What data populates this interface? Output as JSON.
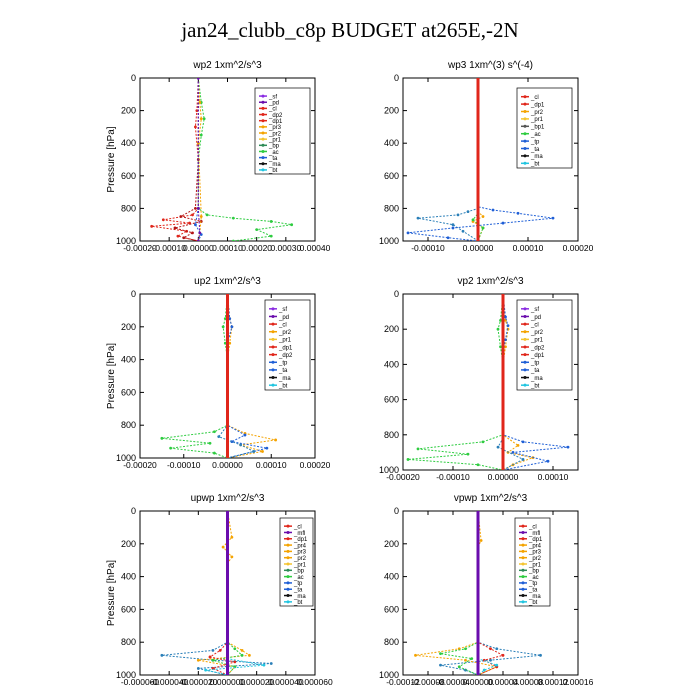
{
  "page": {
    "title": "jan24_clubb_c8p  BUDGET at265E,-2N"
  },
  "colors": {
    "sf": "#8a2be2",
    "pd": "#6a0dad",
    "mfl": "#6a0dad",
    "cl": "#e0261b",
    "dp1": "#e0261b",
    "dp2": "#e0261b",
    "pr1": "#f4c430",
    "pr2": "#f4a300",
    "pr3": "#f4a300",
    "pr4": "#f4a300",
    "bp": "#2e8b57",
    "ac": "#2ecc40",
    "tp": "#1f5fd6",
    "ta": "#1f5fd6",
    "ma": "#111111",
    "bt": "#22c5e0"
  },
  "chart_data": [
    {
      "type": "line",
      "title": "wp2   1xm^2/s^3",
      "ylabel": "Pressure  [hPa]",
      "xlim": [
        -0.0002,
        0.0004
      ],
      "ylim": [
        1000,
        0
      ],
      "xticks": [
        "-0.00020",
        "-0.00010",
        "0.00000",
        "0.00010",
        "0.00020",
        "0.00030",
        "0.00040"
      ],
      "xtick_values": [
        -0.0002,
        -0.0001,
        0.0,
        0.0001,
        0.0002,
        0.0003,
        0.0004
      ],
      "yticks": [
        0,
        200,
        400,
        600,
        800,
        1000
      ],
      "legend": [
        "_sf",
        "_pd",
        "_cl",
        "_dp2",
        "_dp1",
        "_pr3",
        "_pr2",
        "_pr1",
        "_bp",
        "_ac",
        "_ta",
        "_ma",
        "_bt"
      ],
      "series": [
        {
          "name": "_ac",
          "color": "#2ecc40",
          "x": [
            0,
            1e-05,
            2e-05,
            1e-05,
            0,
            0,
            3e-05,
            0.00012,
            0.00025,
            0.00032,
            0.0002,
            0.00025,
            0.00012
          ],
          "y": [
            0,
            150,
            250,
            350,
            500,
            800,
            840,
            860,
            880,
            900,
            930,
            970,
            1000
          ]
        },
        {
          "name": "_dp1",
          "color": "#e0261b",
          "x": [
            0,
            -5e-06,
            -1e-05,
            0,
            0,
            -2e-05,
            -0.00012,
            -3e-05,
            -0.00016,
            -4e-05,
            -7e-05,
            0
          ],
          "y": [
            0,
            200,
            300,
            500,
            800,
            840,
            870,
            890,
            910,
            940,
            970,
            1000
          ]
        },
        {
          "name": "_dp2",
          "color": "#b31313",
          "x": [
            0,
            0,
            -1e-05,
            -6e-05,
            1e-05,
            -8e-05,
            -2e-05,
            -5e-05,
            0
          ],
          "y": [
            0,
            500,
            800,
            850,
            880,
            920,
            950,
            980,
            1000
          ]
        },
        {
          "name": "_pr2",
          "color": "#f4a300",
          "x": [
            0,
            5e-06,
            1e-05,
            0,
            1e-05,
            5e-06,
            0
          ],
          "y": [
            0,
            150,
            250,
            400,
            850,
            950,
            1000
          ]
        },
        {
          "name": "_tp",
          "color": "#1f5fd6",
          "x": [
            0,
            0,
            -1e-05,
            1e-05,
            0
          ],
          "y": [
            0,
            800,
            900,
            960,
            1000
          ]
        },
        {
          "name": "_sf",
          "color": "#6a0dad",
          "x": [
            0,
            0,
            5e-06,
            0
          ],
          "y": [
            0,
            800,
            950,
            1000
          ]
        }
      ]
    },
    {
      "type": "line",
      "title": "wp3   1xm^(3) s^(-4)",
      "ylabel": "",
      "xlim": [
        -0.00015,
        0.0002
      ],
      "ylim": [
        1000,
        0
      ],
      "xticks": [
        "-0.00010",
        "0.00000",
        "0.00010",
        "0.00020"
      ],
      "xtick_values": [
        -0.0001,
        0.0,
        0.0001,
        0.0002
      ],
      "yticks": [
        0,
        200,
        400,
        600,
        800,
        1000
      ],
      "legend": [
        "_cl",
        "_dp1",
        "_pr2",
        "_pr1",
        "_bp1",
        "_ac",
        "_tp",
        "_ta",
        "_ma",
        "_bt"
      ],
      "series": [
        {
          "name": "_ta",
          "color": "#2a7fb8",
          "x": [
            0,
            0,
            -2e-05,
            -4e-05,
            -0.00012,
            -5e-05,
            -3e-05,
            0
          ],
          "y": [
            0,
            800,
            820,
            840,
            860,
            900,
            940,
            1000
          ]
        },
        {
          "name": "_tp",
          "color": "#1f5fd6",
          "x": [
            0,
            0,
            3e-05,
            8e-05,
            0.00015,
            5e-05,
            -5e-05,
            -0.00014,
            -6e-05,
            0
          ],
          "y": [
            0,
            790,
            810,
            830,
            860,
            890,
            920,
            950,
            980,
            1000
          ]
        },
        {
          "name": "_pr2",
          "color": "#f4a300",
          "x": [
            0,
            0,
            1e-05,
            -1e-05,
            1e-05,
            0
          ],
          "y": [
            0,
            820,
            850,
            880,
            920,
            1000
          ]
        },
        {
          "name": "_ac",
          "color": "#2ecc40",
          "x": [
            0,
            0,
            -1e-05,
            1e-05,
            0
          ],
          "y": [
            0,
            830,
            870,
            920,
            1000
          ]
        },
        {
          "name": "_cl",
          "color": "#e0261b",
          "x": [
            0,
            0,
            0
          ],
          "y": [
            0,
            500,
            1000
          ]
        }
      ]
    },
    {
      "type": "line",
      "title": "up2   1xm^2/s^3",
      "ylabel": "Pressure  [hPa]",
      "xlim": [
        -0.0002,
        0.0002
      ],
      "ylim": [
        1000,
        0
      ],
      "xticks": [
        "-0.00020",
        "-0.00010",
        "0.00000",
        "0.00010",
        "0.00020"
      ],
      "xtick_values": [
        -0.0002,
        -0.0001,
        0.0,
        0.0001,
        0.0002
      ],
      "yticks": [
        0,
        200,
        400,
        600,
        800,
        1000
      ],
      "legend": [
        "_sf",
        "_pd",
        "_cl",
        "_pr2",
        "_pr1",
        "_dp1",
        "_dp2",
        "_tp",
        "_ta",
        "_ma",
        "_bt"
      ],
      "series": [
        {
          "name": "_dp1",
          "color": "#2ecc40",
          "x": [
            0,
            -5e-06,
            -1e-05,
            -5e-06,
            0,
            0,
            -3e-05,
            -0.00015,
            -4e-05,
            -0.00013,
            -3e-05,
            0
          ],
          "y": [
            0,
            150,
            200,
            300,
            400,
            800,
            840,
            880,
            910,
            940,
            970,
            1000
          ]
        },
        {
          "name": "_pr2",
          "color": "#f4a300",
          "x": [
            0,
            5e-06,
            1e-05,
            5e-06,
            0,
            0,
            4e-05,
            0.00011,
            3e-05,
            8e-05,
            0
          ],
          "y": [
            0,
            150,
            200,
            300,
            400,
            800,
            850,
            890,
            920,
            960,
            1000
          ]
        },
        {
          "name": "_tp",
          "color": "#1f5fd6",
          "x": [
            0,
            5e-06,
            1e-05,
            0,
            0,
            4e-05,
            1e-05,
            9e-05,
            0
          ],
          "y": [
            0,
            150,
            200,
            300,
            800,
            860,
            900,
            940,
            1000
          ]
        },
        {
          "name": "_ta",
          "color": "#2a7fb8",
          "x": [
            0,
            0,
            -2e-05,
            3e-05,
            6e-05,
            0
          ],
          "y": [
            0,
            800,
            870,
            920,
            960,
            1000
          ]
        },
        {
          "name": "_cl",
          "color": "#e0261b",
          "x": [
            0,
            0,
            0
          ],
          "y": [
            0,
            500,
            1000
          ]
        }
      ]
    },
    {
      "type": "line",
      "title": "vp2   1xm^2/s^3",
      "ylabel": "",
      "xlim": [
        -0.0002,
        0.00015
      ],
      "ylim": [
        1000,
        0
      ],
      "xticks": [
        "-0.00020",
        "-0.00010",
        "0.00000",
        "0.00010"
      ],
      "xtick_values": [
        -0.0002,
        -0.0001,
        0.0,
        0.0001
      ],
      "yticks": [
        0,
        200,
        400,
        600,
        800,
        1000
      ],
      "legend": [
        "_sf",
        "_pd",
        "_cl",
        "_pr2",
        "_pr1",
        "_dp2",
        "_dp1",
        "_tp",
        "_ta",
        "_ma",
        "_bt"
      ],
      "series": [
        {
          "name": "_dp1",
          "color": "#2ecc40",
          "x": [
            0,
            -5e-06,
            -1e-05,
            -5e-06,
            0,
            0,
            -4e-05,
            -0.00017,
            -7e-05,
            -0.00019,
            -5e-05,
            0
          ],
          "y": [
            0,
            150,
            200,
            300,
            400,
            800,
            840,
            880,
            910,
            940,
            970,
            1000
          ]
        },
        {
          "name": "_pr2",
          "color": "#f4a300",
          "x": [
            0,
            5e-06,
            1e-05,
            5e-06,
            0,
            0,
            3e-05,
            1e-05,
            6e-05,
            2e-05,
            0
          ],
          "y": [
            0,
            150,
            200,
            300,
            400,
            800,
            860,
            900,
            930,
            970,
            1000
          ]
        },
        {
          "name": "_tp",
          "color": "#1f5fd6",
          "x": [
            0,
            5e-06,
            1e-05,
            5e-06,
            0,
            0,
            4e-05,
            0.00013,
            2e-05,
            9e-05,
            0
          ],
          "y": [
            0,
            130,
            180,
            260,
            330,
            800,
            840,
            870,
            900,
            950,
            1000
          ]
        },
        {
          "name": "_ta",
          "color": "#2a7fb8",
          "x": [
            0,
            0,
            -1e-05,
            4e-05,
            0
          ],
          "y": [
            0,
            820,
            870,
            940,
            1000
          ]
        },
        {
          "name": "_cl",
          "color": "#e0261b",
          "x": [
            0,
            0,
            0
          ],
          "y": [
            0,
            500,
            1000
          ]
        }
      ]
    },
    {
      "type": "line",
      "title": "upwp   1xm^2/s^3",
      "ylabel": "Pressure  [hPa]",
      "xlim": [
        -6e-05,
        6e-05
      ],
      "ylim": [
        1000,
        0
      ],
      "xticks": [
        "-0.000060",
        "-0.000040",
        "-0.000020",
        "0.000000",
        "0.000020",
        "0.000040",
        "0.000060"
      ],
      "xtick_values": [
        -6e-05,
        -4e-05,
        -2e-05,
        0.0,
        2e-05,
        4e-05,
        6e-05
      ],
      "yticks": [
        0,
        200,
        400,
        600,
        800,
        1000
      ],
      "legend": [
        "_cl",
        "_mfl",
        "_dp1",
        "_pr4",
        "_pr3",
        "_pr2",
        "_pr1",
        "_bp",
        "_ac",
        "_tp",
        "_ta",
        "_ma",
        "_bt"
      ],
      "series": [
        {
          "name": "_ta",
          "color": "#2a7fb8",
          "x": [
            0,
            0,
            -1e-05,
            -4.5e-05,
            -1e-05,
            3e-05,
            -2e-05,
            0
          ],
          "y": [
            0,
            800,
            850,
            880,
            910,
            930,
            960,
            1000
          ]
        },
        {
          "name": "_pr2",
          "color": "#f4a300",
          "x": [
            0,
            3e-06,
            -3e-06,
            3e-06,
            0,
            0,
            1e-05,
            1.5e-05,
            -2e-05,
            5e-06,
            0
          ],
          "y": [
            0,
            160,
            220,
            280,
            320,
            800,
            850,
            880,
            910,
            950,
            1000
          ]
        },
        {
          "name": "_ac",
          "color": "#2ecc40",
          "x": [
            0,
            0,
            5e-06,
            1e-05,
            -1e-05,
            5e-06,
            0
          ],
          "y": [
            0,
            800,
            840,
            880,
            910,
            950,
            1000
          ]
        },
        {
          "name": "_dp1",
          "color": "#e0261b",
          "x": [
            0,
            0,
            -5e-06,
            -1.2e-05,
            5e-06,
            -1e-05,
            0
          ],
          "y": [
            0,
            800,
            850,
            890,
            920,
            960,
            1000
          ]
        },
        {
          "name": "_bt",
          "color": "#22c5e0",
          "x": [
            0,
            0,
            2.5e-05,
            -1.5e-05,
            0
          ],
          "y": [
            0,
            900,
            940,
            970,
            1000
          ]
        },
        {
          "name": "_mfl",
          "color": "#6a0dad",
          "x": [
            0,
            0,
            0
          ],
          "y": [
            0,
            500,
            1000
          ]
        }
      ]
    },
    {
      "type": "line",
      "title": "vpwp   1xm^2/s^3",
      "ylabel": "",
      "xlim": [
        -0.00012,
        0.00016
      ],
      "ylim": [
        1000,
        0
      ],
      "xticks": [
        "-0.00012",
        "-0.00008",
        "-0.00004",
        "0.00000",
        "0.00004",
        "0.00008",
        "0.00012",
        "0.00016"
      ],
      "xtick_values": [
        -0.00012,
        -8e-05,
        -4e-05,
        0.0,
        4e-05,
        8e-05,
        0.00012,
        0.00016
      ],
      "yticks": [
        0,
        200,
        400,
        600,
        800,
        1000
      ],
      "legend": [
        "_cl",
        "_mfl",
        "_dp1",
        "_pr4",
        "_pr3",
        "_pr2",
        "_pr1",
        "_bp",
        "_ac",
        "_tp",
        "_ta",
        "_ma",
        "_bt"
      ],
      "series": [
        {
          "name": "_ta",
          "color": "#2a7fb8",
          "x": [
            0,
            0,
            3e-05,
            0.0001,
            2e-05,
            -6e-05,
            -2e-05,
            0
          ],
          "y": [
            0,
            800,
            840,
            880,
            910,
            940,
            970,
            1000
          ]
        },
        {
          "name": "_pr2",
          "color": "#f4a300",
          "x": [
            0,
            5e-06,
            0,
            0,
            -3e-05,
            -0.0001,
            -2e-05,
            3e-05,
            0
          ],
          "y": [
            0,
            180,
            220,
            800,
            840,
            880,
            910,
            950,
            1000
          ]
        },
        {
          "name": "_ac",
          "color": "#2ecc40",
          "x": [
            0,
            0,
            -2e-05,
            -6e-05,
            -1e-05,
            -3e-05,
            0
          ],
          "y": [
            0,
            800,
            840,
            870,
            900,
            950,
            1000
          ]
        },
        {
          "name": "_dp1",
          "color": "#e0261b",
          "x": [
            0,
            0,
            2e-05,
            4e-05,
            1e-05,
            3e-05,
            0
          ],
          "y": [
            0,
            800,
            840,
            880,
            910,
            950,
            1000
          ]
        },
        {
          "name": "_bt",
          "color": "#22c5e0",
          "x": [
            0,
            0,
            3e-05,
            1e-05,
            0
          ],
          "y": [
            0,
            900,
            940,
            970,
            1000
          ]
        },
        {
          "name": "_mfl",
          "color": "#6a0dad",
          "x": [
            0,
            0,
            0
          ],
          "y": [
            0,
            500,
            1000
          ]
        }
      ]
    }
  ]
}
